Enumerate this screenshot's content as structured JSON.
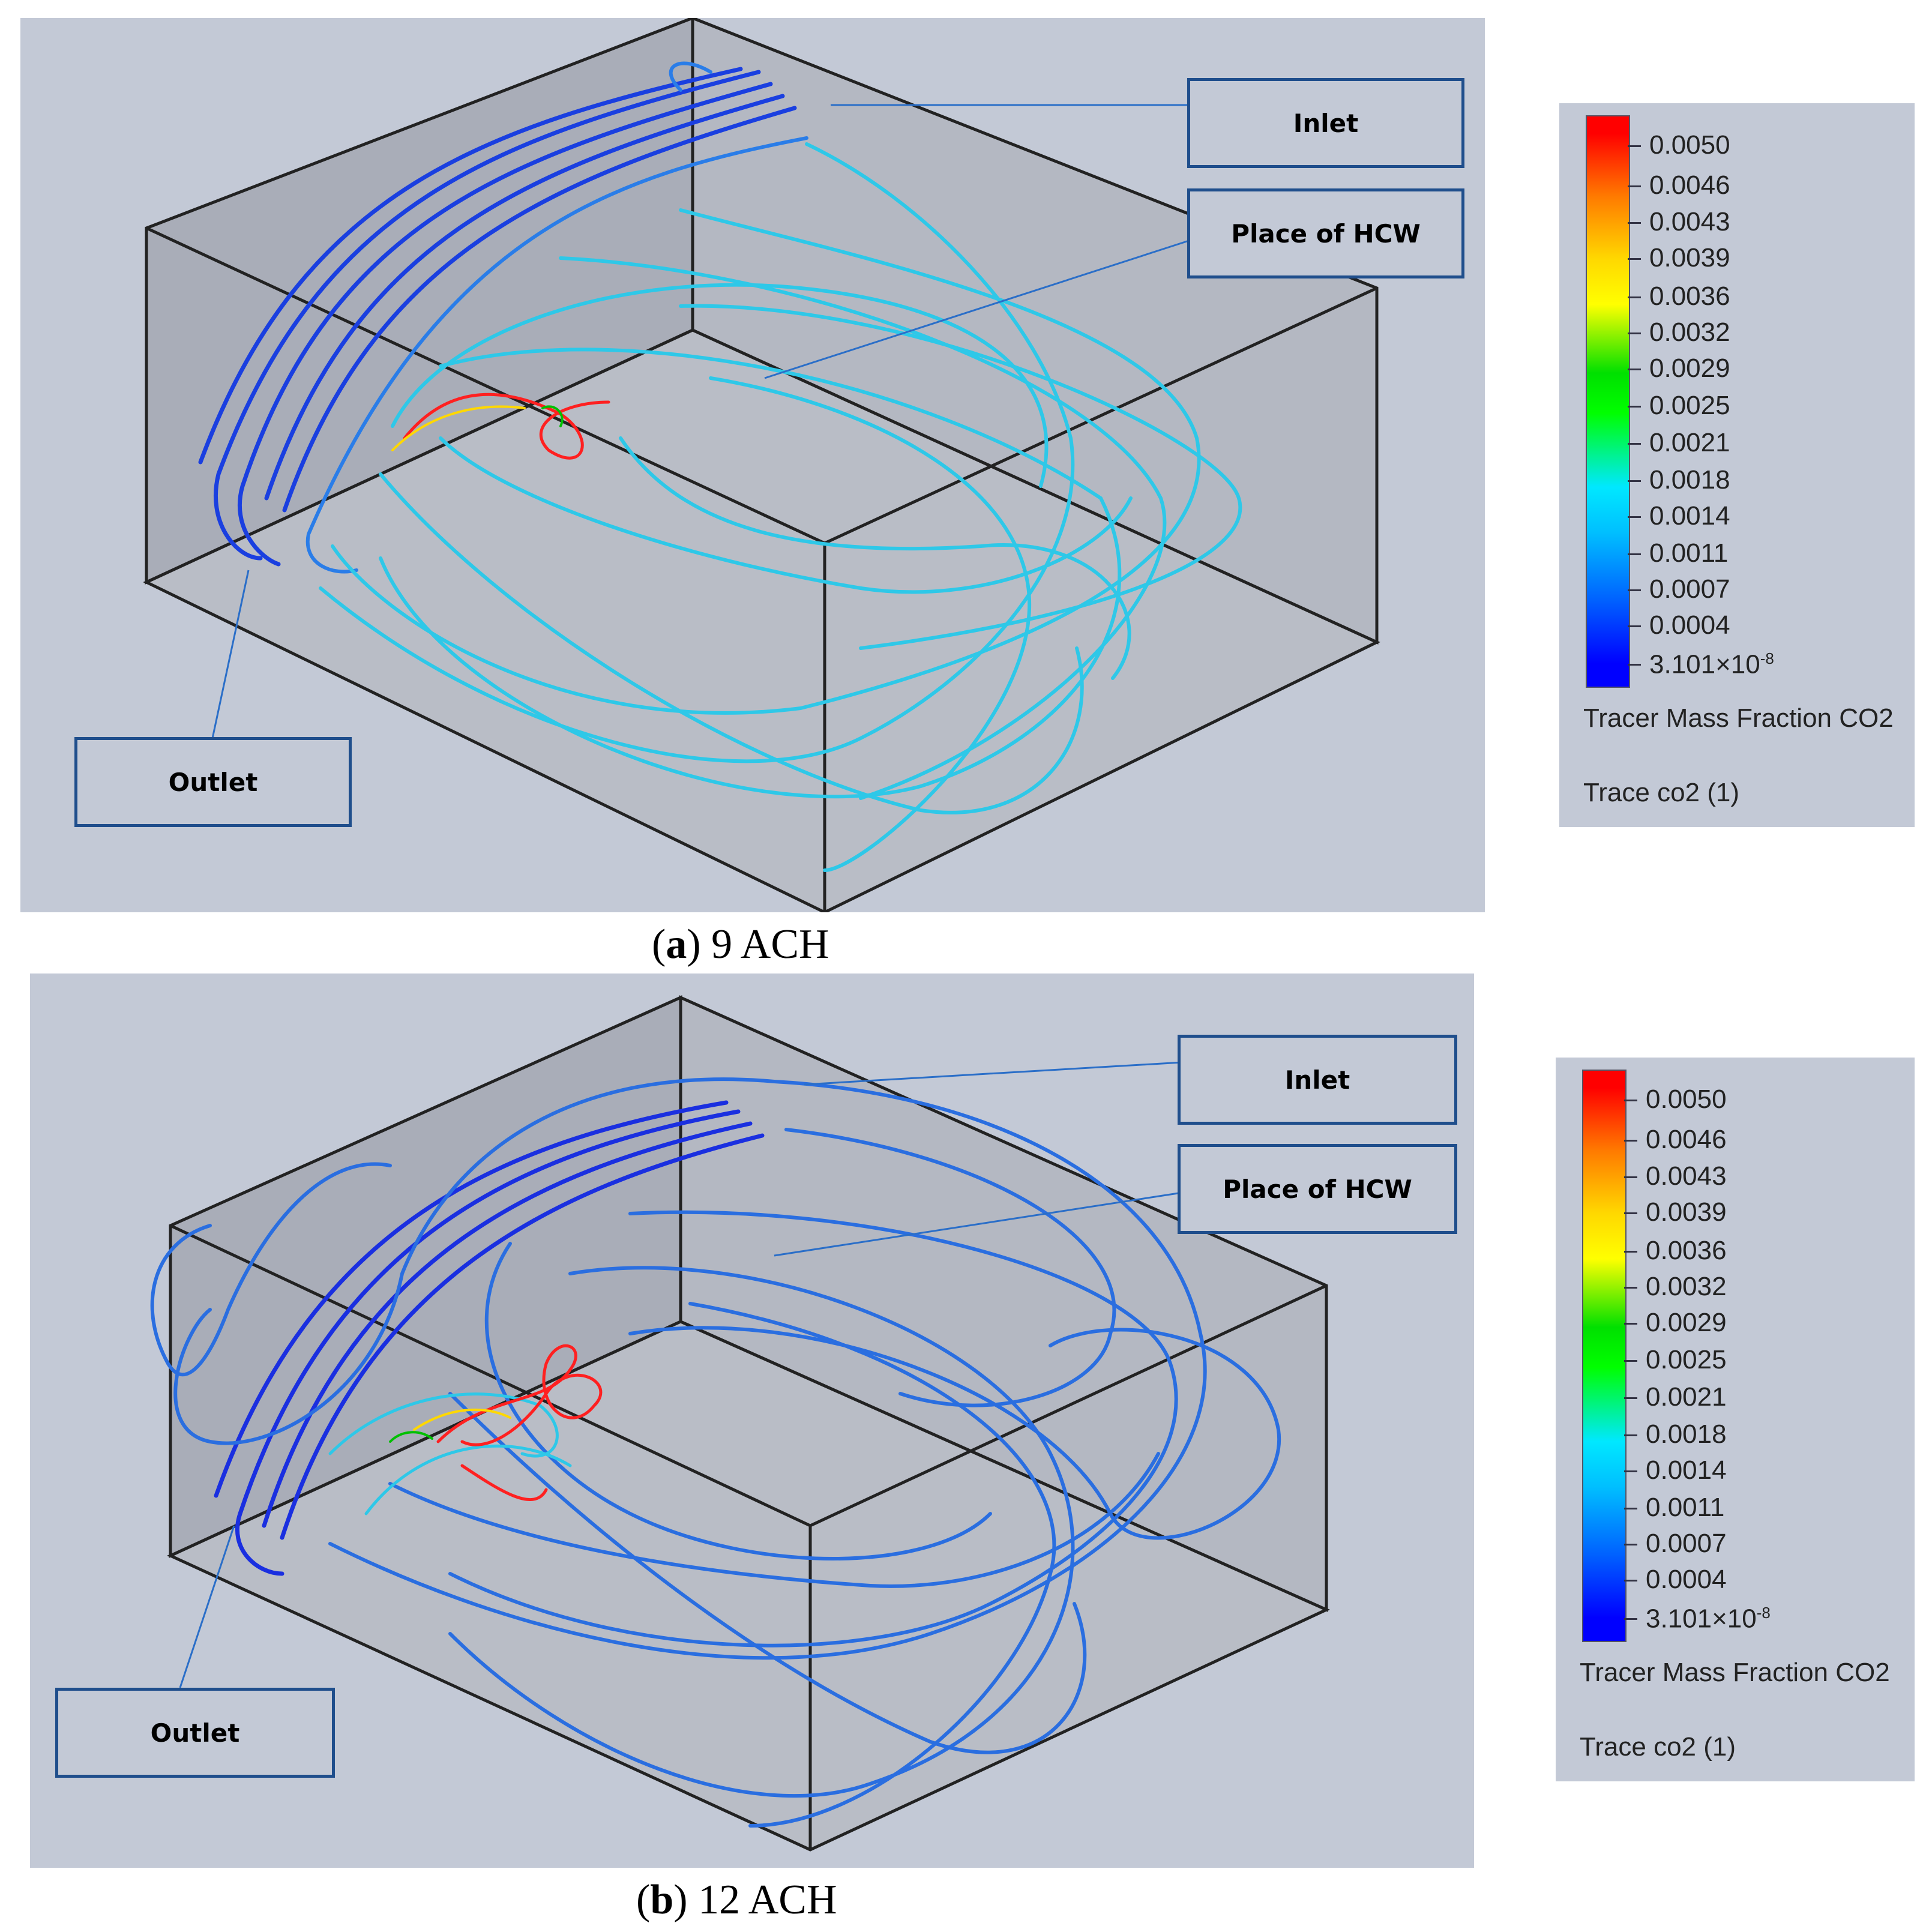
{
  "panels": [
    {
      "id": "a",
      "caption_letter": "a",
      "caption_text": "9 ACH",
      "labels": {
        "inlet": "Inlet",
        "hcw": "Place of HCW",
        "outlet": "Outlet"
      }
    },
    {
      "id": "b",
      "caption_letter": "b",
      "caption_text": "12 ACH",
      "labels": {
        "inlet": "Inlet",
        "hcw": "Place of HCW",
        "outlet": "Outlet"
      }
    }
  ],
  "legend": {
    "ticks": [
      "0.0050",
      "0.0046",
      "0.0043",
      "0.0039",
      "0.0036",
      "0.0032",
      "0.0029",
      "0.0025",
      "0.0021",
      "0.0018",
      "0.0014",
      "0.0011",
      "0.0007",
      "0.0004"
    ],
    "min_base": "3.101×10",
    "min_exp": "-8",
    "title": "Tracer Mass Fraction CO2",
    "trace": "Trace co2 (1)"
  },
  "colors": {
    "panel_bg": "#c3c9d6",
    "callout_border": "#1f4e8c",
    "stream_dark": "#1a3fe0",
    "stream_mid": "#2a7de8",
    "stream_light": "#2ec8e8",
    "stream_high": "#ff2020"
  }
}
